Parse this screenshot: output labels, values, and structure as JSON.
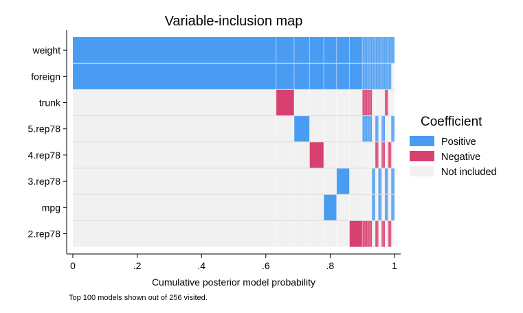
{
  "chart_data": {
    "type": "heatmap",
    "title": "Variable-inclusion map",
    "xlabel": "Cumulative posterior model probability",
    "ylabel": "",
    "note": "Top 100 models shown out of 256 visited.",
    "xlim": [
      0,
      1
    ],
    "x_ticks": [
      {
        "value": 0,
        "label": "0"
      },
      {
        "value": 0.2,
        "label": ".2"
      },
      {
        "value": 0.4,
        "label": ".4"
      },
      {
        "value": 0.6,
        "label": ".6"
      },
      {
        "value": 0.8,
        "label": ".8"
      },
      {
        "value": 1,
        "label": "1"
      }
    ],
    "variables": [
      "weight",
      "foreign",
      "trunk",
      "5.rep78",
      "4.rep78",
      "3.rep78",
      "mpg",
      "2.rep78"
    ],
    "legend": {
      "title": "Coefficient",
      "position": "right",
      "entries": [
        {
          "key": "positive",
          "label": "Positive",
          "color": "#4a9cf2"
        },
        {
          "key": "negative",
          "label": "Negative",
          "color": "#d8406f"
        },
        {
          "key": "none",
          "label": "Not included",
          "color": "#f1f1f1"
        }
      ]
    },
    "model_boundaries": [
      0,
      0.632,
      0.688,
      0.736,
      0.78,
      0.82,
      0.86,
      0.9
    ],
    "tail_start": 0.9,
    "tail_end": 1.0,
    "models": [
      {
        "cum_start": 0.0,
        "cum_end": 0.632,
        "effects": {
          "weight": "positive",
          "foreign": "positive"
        }
      },
      {
        "cum_start": 0.632,
        "cum_end": 0.688,
        "effects": {
          "weight": "positive",
          "foreign": "positive",
          "trunk": "negative"
        }
      },
      {
        "cum_start": 0.688,
        "cum_end": 0.736,
        "effects": {
          "weight": "positive",
          "foreign": "positive",
          "5.rep78": "positive"
        }
      },
      {
        "cum_start": 0.736,
        "cum_end": 0.78,
        "effects": {
          "weight": "positive",
          "foreign": "positive",
          "4.rep78": "negative"
        }
      },
      {
        "cum_start": 0.78,
        "cum_end": 0.82,
        "effects": {
          "weight": "positive",
          "foreign": "positive",
          "mpg": "positive"
        }
      },
      {
        "cum_start": 0.82,
        "cum_end": 0.86,
        "effects": {
          "weight": "positive",
          "foreign": "positive",
          "3.rep78": "positive"
        }
      },
      {
        "cum_start": 0.86,
        "cum_end": 0.9,
        "effects": {
          "weight": "positive",
          "foreign": "positive",
          "2.rep78": "negative"
        }
      },
      {
        "cum_start": 0.9,
        "cum_end": 0.93,
        "effects": {
          "weight": "positive",
          "foreign": "positive",
          "trunk": "negative",
          "5.rep78": "positive",
          "2.rep78": "negative"
        }
      },
      {
        "cum_start": 0.93,
        "cum_end": 0.94,
        "effects": {
          "weight": "positive",
          "foreign": "positive",
          "3.rep78": "positive",
          "mpg": "positive"
        }
      },
      {
        "cum_start": 0.94,
        "cum_end": 0.95,
        "effects": {
          "weight": "positive",
          "foreign": "positive",
          "5.rep78": "positive",
          "4.rep78": "negative",
          "2.rep78": "negative"
        }
      },
      {
        "cum_start": 0.95,
        "cum_end": 0.96,
        "effects": {
          "weight": "positive",
          "foreign": "positive",
          "3.rep78": "positive",
          "mpg": "positive"
        }
      },
      {
        "cum_start": 0.96,
        "cum_end": 0.97,
        "effects": {
          "weight": "positive",
          "foreign": "positive",
          "5.rep78": "positive",
          "4.rep78": "negative",
          "2.rep78": "negative"
        }
      },
      {
        "cum_start": 0.97,
        "cum_end": 0.98,
        "effects": {
          "weight": "positive",
          "foreign": "positive",
          "trunk": "negative",
          "3.rep78": "positive",
          "mpg": "positive"
        }
      },
      {
        "cum_start": 0.98,
        "cum_end": 0.99,
        "effects": {
          "weight": "positive",
          "foreign": "positive",
          "4.rep78": "negative",
          "2.rep78": "negative"
        }
      },
      {
        "cum_start": 0.99,
        "cum_end": 1.0,
        "effects": {
          "weight": "positive",
          "5.rep78": "positive",
          "3.rep78": "positive",
          "mpg": "positive"
        }
      }
    ]
  }
}
